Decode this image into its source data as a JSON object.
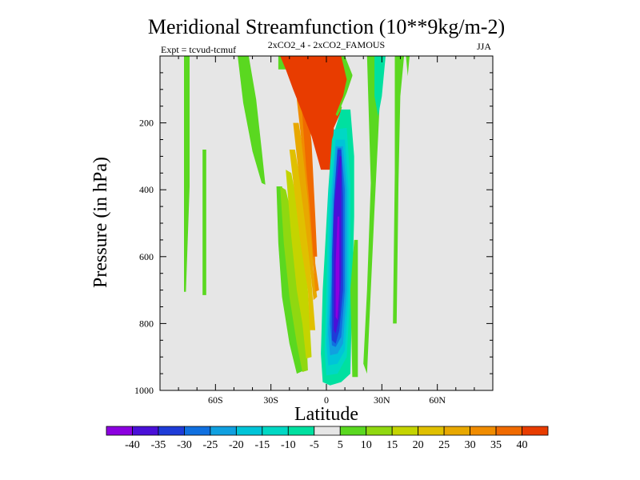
{
  "chart_data": {
    "type": "heatmap",
    "title": "Meridional Streamfunction (10**9kg/m-2)",
    "subtitle": "2xCO2_4 - 2xCO2_FAMOUS",
    "experiment_label": "Expt = tcvud-tcmuf",
    "season_label": "JJA",
    "xlabel": "Latitude",
    "ylabel": "Pressure (in hPa)",
    "xlim": [
      -90,
      90
    ],
    "ylim": [
      1000,
      0
    ],
    "xticks": [
      {
        "value": -60,
        "label": "60S"
      },
      {
        "value": -30,
        "label": "30S"
      },
      {
        "value": 0,
        "label": "0"
      },
      {
        "value": 30,
        "label": "30N"
      },
      {
        "value": 60,
        "label": "60N"
      }
    ],
    "yticks": [
      {
        "value": 200,
        "label": "200"
      },
      {
        "value": 400,
        "label": "400"
      },
      {
        "value": 600,
        "label": "600"
      },
      {
        "value": 800,
        "label": "800"
      },
      {
        "value": 1000,
        "label": "1000"
      }
    ],
    "background_level": "-5 to 5",
    "colors": {
      "background": "#e6e6e6",
      "levels": [
        "#8c00e0",
        "#4a10d8",
        "#1e3cd8",
        "#1070e0",
        "#10a0e0",
        "#00c4d8",
        "#00d8c4",
        "#00e0a0",
        "#e6e6e6",
        "#5ad820",
        "#90d810",
        "#c4d400",
        "#e0c000",
        "#e8a800",
        "#f08c00",
        "#f06a00",
        "#e83c00"
      ]
    },
    "colorbar": {
      "labels": [
        "-40",
        "-35",
        "-30",
        "-25",
        "-20",
        "-15",
        "-10",
        "-5",
        "5",
        "10",
        "15",
        "20",
        "25",
        "30",
        "35",
        "40"
      ]
    },
    "regions": [
      {
        "value": 7.5,
        "points": [
          [
            -77,
            0
          ],
          [
            -74,
            0
          ],
          [
            -74,
            390
          ],
          [
            -76,
            705
          ],
          [
            -77,
            705
          ]
        ]
      },
      {
        "value": 7.5,
        "points": [
          [
            -67,
            280
          ],
          [
            -65,
            280
          ],
          [
            -65,
            715
          ],
          [
            -67,
            715
          ]
        ]
      },
      {
        "value": 7.5,
        "points": [
          [
            -48,
            0
          ],
          [
            -42,
            0
          ],
          [
            -38,
            130
          ],
          [
            -35,
            280
          ],
          [
            -33,
            385
          ],
          [
            -35,
            380
          ],
          [
            -40,
            285
          ],
          [
            -45,
            140
          ]
        ]
      },
      {
        "value": -5,
        "points": [
          [
            -33,
            0
          ],
          [
            -30,
            0
          ],
          [
            -30,
            60
          ],
          [
            -32,
            60
          ]
        ]
      },
      {
        "value": 7.5,
        "points": [
          [
            -26,
            0
          ],
          [
            -20,
            0
          ],
          [
            -20,
            40
          ],
          [
            -26,
            40
          ]
        ]
      },
      {
        "value": 7.5,
        "points": [
          [
            -27,
            390
          ],
          [
            -24,
            390
          ],
          [
            -18,
            530
          ],
          [
            -15,
            720
          ],
          [
            -12,
            940
          ],
          [
            -16,
            950
          ],
          [
            -20,
            860
          ],
          [
            -24,
            720
          ],
          [
            -26,
            560
          ]
        ]
      },
      {
        "value": 12.5,
        "points": [
          [
            -25,
            390
          ],
          [
            -22,
            400
          ],
          [
            -15,
            560
          ],
          [
            -12,
            700
          ],
          [
            -10,
            940
          ],
          [
            -13,
            945
          ],
          [
            -16,
            860
          ],
          [
            -20,
            720
          ],
          [
            -23,
            560
          ]
        ]
      },
      {
        "value": 17.5,
        "points": [
          [
            -22,
            340
          ],
          [
            -19,
            350
          ],
          [
            -13,
            520
          ],
          [
            -10,
            700
          ],
          [
            -8,
            900
          ],
          [
            -11,
            905
          ],
          [
            -13,
            800
          ],
          [
            -16,
            700
          ],
          [
            -19,
            540
          ]
        ]
      },
      {
        "value": 22.5,
        "points": [
          [
            -20,
            280
          ],
          [
            -17,
            280
          ],
          [
            -11,
            470
          ],
          [
            -8,
            680
          ],
          [
            -6,
            820
          ],
          [
            -9,
            820
          ],
          [
            -10,
            700
          ],
          [
            -14,
            560
          ],
          [
            -17,
            420
          ]
        ]
      },
      {
        "value": 27.5,
        "points": [
          [
            -18,
            200
          ],
          [
            -15,
            200
          ],
          [
            -9,
            400
          ],
          [
            -7,
            640
          ],
          [
            -5,
            720
          ],
          [
            -7,
            730
          ],
          [
            -9,
            620
          ],
          [
            -12,
            480
          ],
          [
            -15,
            350
          ]
        ]
      },
      {
        "value": 32.5,
        "points": [
          [
            -16,
            130
          ],
          [
            -13,
            130
          ],
          [
            -8,
            330
          ],
          [
            -6,
            620
          ],
          [
            -4,
            700
          ],
          [
            -6,
            705
          ],
          [
            -8,
            560
          ],
          [
            -10,
            430
          ],
          [
            -13,
            280
          ]
        ]
      },
      {
        "value": 37.5,
        "points": [
          [
            -15,
            50
          ],
          [
            -12,
            50
          ],
          [
            -8,
            260
          ],
          [
            -6,
            480
          ],
          [
            -5,
            600
          ],
          [
            -7,
            600
          ],
          [
            -9,
            450
          ],
          [
            -11,
            330
          ],
          [
            -13,
            180
          ]
        ]
      },
      {
        "value": 42.5,
        "points": [
          [
            -25,
            0
          ],
          [
            8,
            0
          ],
          [
            11,
            40
          ],
          [
            12,
            80
          ],
          [
            7,
            180
          ],
          [
            4,
            240
          ],
          [
            3,
            340
          ],
          [
            -3,
            340
          ],
          [
            -8,
            240
          ],
          [
            -13,
            170
          ],
          [
            -18,
            100
          ],
          [
            -22,
            40
          ]
        ]
      },
      {
        "value": 7.5,
        "points": [
          [
            8,
            0
          ],
          [
            10,
            0
          ],
          [
            15,
            70
          ],
          [
            11,
            125
          ],
          [
            6,
            180
          ],
          [
            5,
            175
          ],
          [
            9,
            120
          ],
          [
            11,
            70
          ]
        ]
      },
      {
        "value": 2.5,
        "points": [
          [
            4,
            215
          ],
          [
            8,
            165
          ],
          [
            13,
            155
          ],
          [
            10,
            215
          ],
          [
            5,
            265
          ]
        ]
      },
      {
        "value": -2.5,
        "points": [
          [
            15,
            0
          ],
          [
            25,
            0
          ],
          [
            18,
            110
          ],
          [
            12,
            150
          ],
          [
            10,
            170
          ],
          [
            8,
            150
          ],
          [
            11,
            110
          ],
          [
            14,
            60
          ]
        ]
      },
      {
        "value": -7.5,
        "points": [
          [
            8,
            160
          ],
          [
            13,
            160
          ],
          [
            15,
            300
          ],
          [
            15,
            480
          ],
          [
            14,
            700
          ],
          [
            13,
            950
          ],
          [
            8,
            975
          ],
          [
            2,
            985
          ],
          [
            -2,
            975
          ],
          [
            -3,
            890
          ],
          [
            -2,
            700
          ],
          [
            1,
            400
          ],
          [
            3,
            250
          ]
        ]
      },
      {
        "value": -12.5,
        "points": [
          [
            4,
            220
          ],
          [
            11,
            215
          ],
          [
            13,
            380
          ],
          [
            13,
            700
          ],
          [
            11,
            900
          ],
          [
            6,
            950
          ],
          [
            0,
            955
          ],
          [
            -1,
            880
          ],
          [
            0,
            700
          ],
          [
            1,
            420
          ]
        ]
      },
      {
        "value": -17.5,
        "points": [
          [
            5,
            250
          ],
          [
            10,
            250
          ],
          [
            12,
            400
          ],
          [
            12,
            700
          ],
          [
            10,
            880
          ],
          [
            6,
            920
          ],
          [
            1,
            925
          ],
          [
            0,
            860
          ],
          [
            1,
            700
          ],
          [
            2,
            430
          ]
        ]
      },
      {
        "value": -22.5,
        "points": [
          [
            5,
            270
          ],
          [
            9,
            270
          ],
          [
            11,
            400
          ],
          [
            11,
            700
          ],
          [
            9,
            860
          ],
          [
            6,
            890
          ],
          [
            2,
            895
          ],
          [
            1,
            830
          ],
          [
            2,
            700
          ],
          [
            3,
            430
          ]
        ]
      },
      {
        "value": -27.5,
        "points": [
          [
            6,
            275
          ],
          [
            8,
            275
          ],
          [
            10,
            400
          ],
          [
            10,
            700
          ],
          [
            8,
            840
          ],
          [
            5,
            870
          ],
          [
            3,
            865
          ],
          [
            2,
            800
          ],
          [
            3,
            650
          ],
          [
            4,
            430
          ]
        ]
      },
      {
        "value": -32.5,
        "points": [
          [
            6,
            280
          ],
          [
            8,
            280
          ],
          [
            9,
            420
          ],
          [
            9,
            700
          ],
          [
            7,
            820
          ],
          [
            5,
            860
          ],
          [
            3,
            850
          ],
          [
            3,
            780
          ],
          [
            3,
            600
          ],
          [
            4,
            440
          ]
        ]
      },
      {
        "value": -37.5,
        "points": [
          [
            7,
            300
          ],
          [
            8,
            300
          ],
          [
            8,
            450
          ],
          [
            8,
            650
          ],
          [
            7,
            780
          ],
          [
            5,
            830
          ],
          [
            4,
            820
          ],
          [
            4,
            650
          ],
          [
            4,
            480
          ],
          [
            5,
            400
          ]
        ]
      },
      {
        "value": -42.5,
        "points": [
          [
            6,
            480
          ],
          [
            7,
            480
          ],
          [
            7,
            700
          ],
          [
            6,
            790
          ],
          [
            5,
            780
          ],
          [
            5,
            620
          ]
        ]
      },
      {
        "value": 7.5,
        "points": [
          [
            15,
            550
          ],
          [
            17,
            550
          ],
          [
            17,
            960
          ],
          [
            14,
            960
          ],
          [
            13,
            700
          ]
        ]
      },
      {
        "value": 7.5,
        "points": [
          [
            22,
            0
          ],
          [
            30,
            0
          ],
          [
            28,
            240
          ],
          [
            26,
            460
          ],
          [
            24,
            700
          ],
          [
            22,
            950
          ],
          [
            20,
            920
          ],
          [
            22,
            700
          ],
          [
            24,
            380
          ]
        ]
      },
      {
        "value": -7.5,
        "points": [
          [
            26,
            0
          ],
          [
            32,
            0
          ],
          [
            30,
            120
          ],
          [
            28,
            180
          ],
          [
            26,
            120
          ]
        ]
      },
      {
        "value": 7.5,
        "points": [
          [
            37,
            0
          ],
          [
            42,
            0
          ],
          [
            40,
            120
          ],
          [
            39,
            380
          ],
          [
            38,
            800
          ],
          [
            36,
            800
          ],
          [
            37,
            350
          ]
        ]
      },
      {
        "value": 7.5,
        "points": [
          [
            43,
            0
          ],
          [
            45,
            0
          ],
          [
            44,
            60
          ]
        ]
      }
    ]
  }
}
